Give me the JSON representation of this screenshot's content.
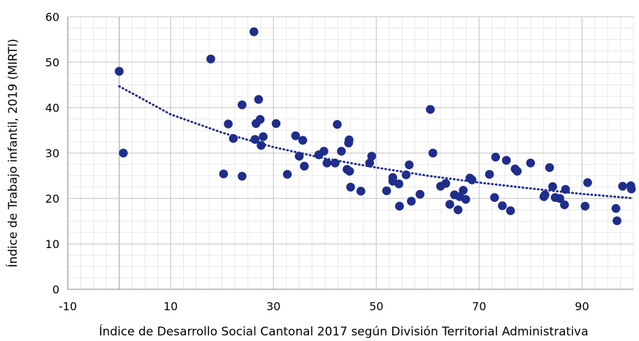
{
  "chart_data": {
    "type": "scatter",
    "title": "",
    "xlabel": "Índice de Desarrollo Social Cantonal 2017 según División Territorial Administrativa",
    "ylabel": "Índice de Trabajo infantil, 2019 (MIRTI)",
    "xlim": [
      -10,
      100
    ],
    "ylim": [
      0,
      60
    ],
    "x_ticks": [
      "-10",
      "10",
      "30",
      "50",
      "70",
      "90"
    ],
    "y_ticks": [
      "0",
      "10",
      "20",
      "30",
      "40",
      "50",
      "60"
    ],
    "grid": "major and minor",
    "legend": "none",
    "colors": {
      "points": "#1f2d8c",
      "trendline": "#1f2d8c",
      "major_grid": "#cccccc",
      "minor_grid": "#e8e8e8"
    },
    "trendline": {
      "type": "logarithmic",
      "style": "dotted",
      "points": [
        [
          0,
          44.7
        ],
        [
          10,
          38.5
        ],
        [
          20,
          34.5
        ],
        [
          30,
          31.3
        ],
        [
          40,
          28.8
        ],
        [
          50,
          26.8
        ],
        [
          60,
          25.0
        ],
        [
          70,
          23.5
        ],
        [
          80,
          22.2
        ],
        [
          90,
          21.0
        ],
        [
          99.5,
          20.1
        ]
      ]
    },
    "points": [
      [
        0.0,
        48.0
      ],
      [
        0.8,
        30.0
      ],
      [
        17.8,
        50.7
      ],
      [
        20.3,
        25.4
      ],
      [
        21.2,
        36.4
      ],
      [
        22.2,
        33.2
      ],
      [
        23.9,
        40.6
      ],
      [
        23.9,
        24.9
      ],
      [
        26.2,
        56.7
      ],
      [
        26.4,
        33.0
      ],
      [
        26.6,
        36.5
      ],
      [
        27.1,
        41.8
      ],
      [
        27.4,
        37.4
      ],
      [
        27.6,
        31.7
      ],
      [
        28.0,
        33.6
      ],
      [
        30.5,
        36.5
      ],
      [
        32.7,
        25.3
      ],
      [
        34.3,
        33.8
      ],
      [
        35.0,
        29.3
      ],
      [
        35.7,
        32.8
      ],
      [
        36.0,
        27.1
      ],
      [
        38.8,
        29.6
      ],
      [
        39.8,
        30.4
      ],
      [
        40.4,
        27.8
      ],
      [
        42.0,
        27.8
      ],
      [
        42.4,
        36.3
      ],
      [
        43.2,
        30.4
      ],
      [
        44.3,
        26.4
      ],
      [
        44.6,
        32.2
      ],
      [
        44.7,
        32.9
      ],
      [
        44.8,
        26.0
      ],
      [
        45.0,
        22.5
      ],
      [
        47.0,
        21.6
      ],
      [
        48.7,
        27.8
      ],
      [
        49.1,
        29.3
      ],
      [
        52.0,
        21.7
      ],
      [
        53.2,
        24.6
      ],
      [
        53.2,
        23.8
      ],
      [
        54.4,
        23.2
      ],
      [
        54.5,
        18.3
      ],
      [
        55.8,
        25.2
      ],
      [
        56.4,
        27.4
      ],
      [
        56.8,
        19.4
      ],
      [
        58.5,
        20.9
      ],
      [
        60.5,
        39.6
      ],
      [
        61.0,
        30.0
      ],
      [
        62.5,
        22.7
      ],
      [
        63.5,
        23.3
      ],
      [
        64.3,
        18.7
      ],
      [
        65.2,
        20.8
      ],
      [
        65.9,
        17.5
      ],
      [
        66.2,
        20.4
      ],
      [
        66.9,
        21.8
      ],
      [
        67.4,
        19.8
      ],
      [
        68.2,
        24.5
      ],
      [
        68.6,
        24.1
      ],
      [
        72.0,
        25.3
      ],
      [
        73.0,
        20.2
      ],
      [
        73.2,
        29.1
      ],
      [
        74.5,
        18.4
      ],
      [
        75.3,
        28.4
      ],
      [
        76.1,
        17.3
      ],
      [
        77.0,
        26.5
      ],
      [
        77.4,
        26.0
      ],
      [
        80.0,
        27.8
      ],
      [
        82.6,
        20.4
      ],
      [
        82.8,
        20.8
      ],
      [
        83.7,
        26.8
      ],
      [
        84.3,
        22.6
      ],
      [
        84.8,
        20.2
      ],
      [
        85.7,
        20.0
      ],
      [
        86.6,
        18.6
      ],
      [
        86.8,
        22.0
      ],
      [
        90.6,
        18.3
      ],
      [
        91.1,
        23.5
      ],
      [
        96.6,
        17.8
      ],
      [
        96.8,
        15.1
      ],
      [
        97.9,
        22.7
      ],
      [
        99.5,
        22.8
      ],
      [
        99.6,
        22.1
      ]
    ]
  }
}
